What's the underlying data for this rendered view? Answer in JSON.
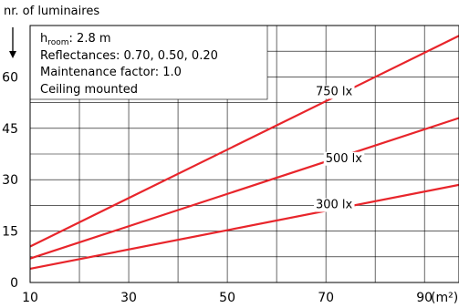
{
  "chart_data": {
    "type": "line",
    "title": "",
    "ylabel": "nr. of luminaires",
    "xlabel": "(m²)",
    "x_ticks": [
      10,
      30,
      50,
      70,
      90
    ],
    "y_ticks": [
      0,
      15,
      30,
      45,
      60
    ],
    "xlim": [
      10,
      97
    ],
    "ylim": [
      0,
      75
    ],
    "grid": true,
    "annotation_lines": [
      {
        "text": "h",
        "sub": "room",
        "tail": ": 2.8 m"
      },
      {
        "text": "Reflectances: 0.70, 0.50, 0.20"
      },
      {
        "text": "Maintenance factor: 1.0"
      },
      {
        "text": "Ceiling mounted"
      }
    ],
    "series": [
      {
        "name": "750 lx",
        "x": [
          10,
          97
        ],
        "y": [
          10.5,
          72
        ],
        "label_x": 72,
        "label_y": 56
      },
      {
        "name": "500 lx",
        "x": [
          10,
          97
        ],
        "y": [
          7,
          48
        ],
        "label_x": 74,
        "label_y": 36.5
      },
      {
        "name": "300 lx",
        "x": [
          10,
          97
        ],
        "y": [
          4,
          28.5
        ],
        "label_x": 72,
        "label_y": 23
      }
    ],
    "line_color": "#e8252b"
  }
}
